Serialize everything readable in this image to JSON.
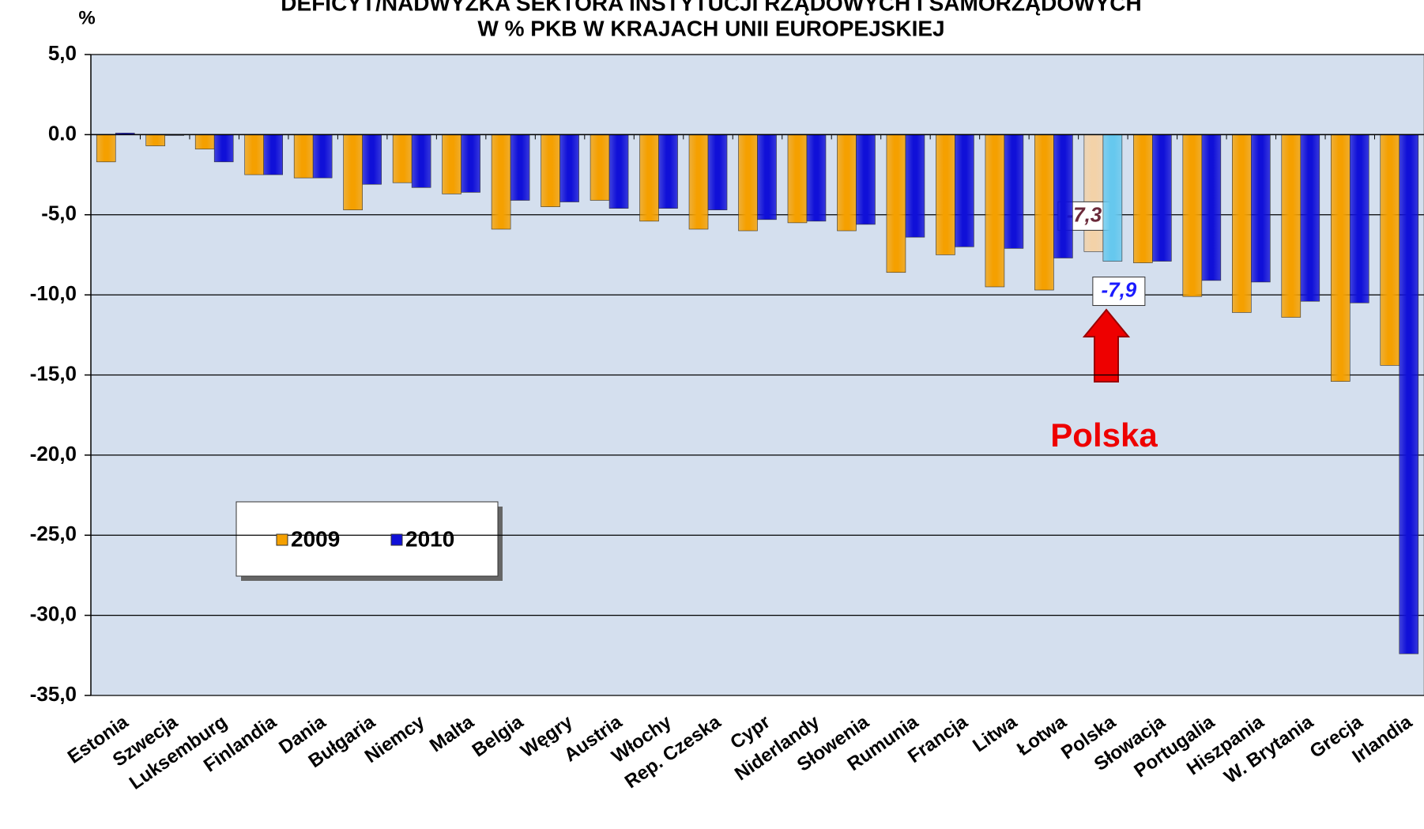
{
  "chart_data": {
    "type": "bar",
    "title": [
      "DEFICYT/NADWYŻKA SEKTORA INSTYTUCJI RZĄDOWYCH I SAMORZĄDOWYCH",
      "W % PKB W KRAJACH UNII EUROPEJSKIEJ"
    ],
    "y_axis_label": "%",
    "categories": [
      "Estonia",
      "Szwecja",
      "Luksemburg",
      "Finlandia",
      "Dania",
      "Bułgaria",
      "Niemcy",
      "Malta",
      "Belgia",
      "Węgry",
      "Austria",
      "Włochy",
      "Rep. Czeska",
      "Cypr",
      "Niderlandy",
      "Słowenia",
      "Rumunia",
      "Francja",
      "Litwa",
      "Łotwa",
      "Polska",
      "Słowacja",
      "Portugalia",
      "Hiszpania",
      "W. Brytania",
      "Grecja",
      "Irlandia"
    ],
    "series": [
      {
        "name": "2009",
        "color": "#f5a000",
        "highlight_color": "#f3d2a8",
        "label_color": "#6b2a3a",
        "values": [
          -1.7,
          -0.7,
          -0.9,
          -2.5,
          -2.7,
          -4.7,
          -3.0,
          -3.7,
          -5.9,
          -4.5,
          -4.1,
          -5.4,
          -5.9,
          -6.0,
          -5.5,
          -6.0,
          -8.6,
          -7.5,
          -9.5,
          -9.7,
          -7.3,
          -8.0,
          -10.1,
          -11.1,
          -11.4,
          -15.4,
          -14.4
        ],
        "value_labels": [
          null,
          null,
          null,
          null,
          null,
          null,
          null,
          null,
          null,
          null,
          null,
          null,
          null,
          null,
          null,
          null,
          null,
          null,
          null,
          null,
          "-7,3",
          null,
          null,
          null,
          null,
          null,
          null
        ]
      },
      {
        "name": "2010",
        "color": "#1010d8",
        "highlight_color": "#66c8ee",
        "label_color": "#1a1aff",
        "values": [
          0.1,
          0.0,
          -1.7,
          -2.5,
          -2.7,
          -3.1,
          -3.3,
          -3.6,
          -4.1,
          -4.2,
          -4.6,
          -4.6,
          -4.7,
          -5.3,
          -5.4,
          -5.6,
          -6.4,
          -7.0,
          -7.1,
          -7.7,
          -7.9,
          -7.9,
          -9.1,
          -9.2,
          -10.4,
          -10.5,
          -32.4
        ],
        "value_labels": [
          null,
          null,
          null,
          null,
          null,
          null,
          null,
          null,
          null,
          null,
          null,
          null,
          null,
          null,
          null,
          null,
          null,
          null,
          null,
          null,
          "-7,9",
          null,
          null,
          null,
          null,
          null,
          null
        ]
      }
    ],
    "ylim": [
      -35,
      5
    ],
    "yticks": [
      {
        "value": 5,
        "label": "5,0"
      },
      {
        "value": 0,
        "label": "0.0"
      },
      {
        "value": -5,
        "label": "-5,0"
      },
      {
        "value": -10,
        "label": "-10,0"
      },
      {
        "value": -15,
        "label": "-15,0"
      },
      {
        "value": -20,
        "label": "-20,0"
      },
      {
        "value": -25,
        "label": "-25,0"
      },
      {
        "value": -30,
        "label": "-30,0"
      },
      {
        "value": -35,
        "label": "-35,0"
      }
    ],
    "grid": true,
    "annotation": "Polska"
  }
}
